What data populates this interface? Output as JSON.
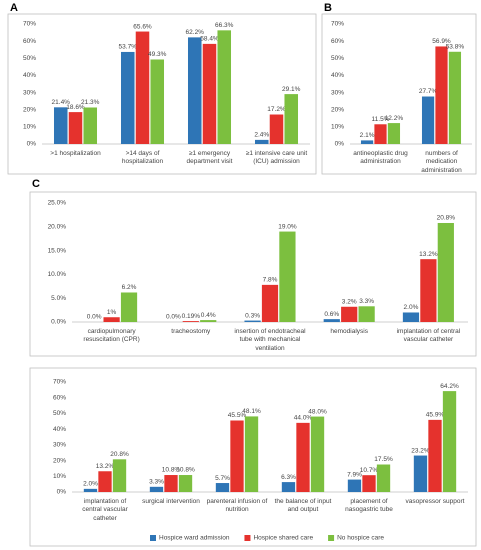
{
  "chart_data": [
    {
      "type": "bar",
      "panel_label": "A",
      "categories": [
        ">1 hospitalization",
        ">14 days of hospitalization",
        "≥1 emergency department visit",
        "≥1 intensive care unit (ICU) admission"
      ],
      "series": [
        {
          "color": "#2e75b6",
          "values": [
            21.4,
            53.7,
            62.2,
            2.4
          ],
          "value_labels": [
            "21.4%",
            "53.7%",
            "62.2%",
            "2.4%"
          ]
        },
        {
          "color": "#e5322d",
          "values": [
            18.6,
            65.6,
            58.4,
            17.2
          ],
          "value_labels": [
            "18.6%",
            "65.6%",
            "58.4%",
            "17.2%"
          ]
        },
        {
          "color": "#7cbf3f",
          "values": [
            21.3,
            49.3,
            66.3,
            29.1
          ],
          "value_labels": [
            "21.3%",
            "49.3%",
            "66.3%",
            "29.1%"
          ]
        }
      ],
      "ylim": [
        0,
        70
      ],
      "yticks": [
        {
          "value": 0,
          "label": "0%"
        },
        {
          "value": 10,
          "label": "10%"
        },
        {
          "value": 20,
          "label": "20%"
        },
        {
          "value": 30,
          "label": "30%"
        },
        {
          "value": 40,
          "label": "40%"
        },
        {
          "value": 50,
          "label": "50%"
        },
        {
          "value": 60,
          "label": "60%"
        },
        {
          "value": 70,
          "label": "70%"
        }
      ]
    },
    {
      "type": "bar",
      "panel_label": "B",
      "categories": [
        "antineoplastic drug administration",
        "numbers of medication administration"
      ],
      "series": [
        {
          "color": "#2e75b6",
          "values": [
            2.1,
            27.7
          ],
          "value_labels": [
            "2.1%",
            "27.7%"
          ]
        },
        {
          "color": "#e5322d",
          "values": [
            11.5,
            56.9
          ],
          "value_labels": [
            "11.5%",
            "56.9%"
          ]
        },
        {
          "color": "#7cbf3f",
          "values": [
            12.2,
            53.8
          ],
          "value_labels": [
            "12.2%",
            "53.8%"
          ]
        }
      ],
      "ylim": [
        0,
        70
      ],
      "yticks": [
        {
          "value": 0,
          "label": "0%"
        },
        {
          "value": 10,
          "label": "10%"
        },
        {
          "value": 20,
          "label": "20%"
        },
        {
          "value": 30,
          "label": "30%"
        },
        {
          "value": 40,
          "label": "40%"
        },
        {
          "value": 50,
          "label": "50%"
        },
        {
          "value": 60,
          "label": "60%"
        },
        {
          "value": 70,
          "label": "70%"
        }
      ]
    },
    {
      "type": "bar",
      "panel_label": "C",
      "categories": [
        "cardiopulmonary resuscitation (CPR)",
        "tracheostomy",
        "insertion of endotracheal tube with mechanical ventilation",
        "hemodialysis",
        "implantation of central vascular catheter"
      ],
      "series": [
        {
          "color": "#2e75b6",
          "values": [
            0,
            0,
            0.3,
            0.6,
            2.0
          ],
          "value_labels": [
            "0.0%",
            "0.0%",
            "0.3%",
            "0.6%",
            "2.0%"
          ]
        },
        {
          "color": "#e5322d",
          "values": [
            1,
            0.19,
            7.8,
            3.2,
            13.2
          ],
          "value_labels": [
            "1%",
            "0.19%",
            "7.8%",
            "3.2%",
            "13.2%"
          ]
        },
        {
          "color": "#7cbf3f",
          "values": [
            6.2,
            0.4,
            19.0,
            3.3,
            20.8
          ],
          "value_labels": [
            "6.2%",
            "0.4%",
            "19.0%",
            "3.3%",
            "20.8%"
          ]
        }
      ],
      "ylim": [
        0,
        25
      ],
      "yticks": [
        {
          "value": 0,
          "label": "0.0%"
        },
        {
          "value": 5,
          "label": "5.0%"
        },
        {
          "value": 10,
          "label": "10.0%"
        },
        {
          "value": 15,
          "label": "15.0%"
        },
        {
          "value": 20,
          "label": "20.0%"
        },
        {
          "value": 25,
          "label": "25.0%"
        }
      ]
    },
    {
      "type": "bar",
      "categories": [
        "implantation of central vascular catheter",
        "surgical intervention",
        "parenteral infusion of nutrition",
        "the balance of input and output",
        "placement of nasogastric tube",
        "vasopressor support"
      ],
      "series": [
        {
          "name": "Hospice ward admission",
          "color": "#2e75b6",
          "values": [
            2.0,
            3.3,
            5.7,
            6.3,
            7.9,
            23.2
          ],
          "value_labels": [
            "2.0%",
            "3.3%",
            "5.7%",
            "6.3%",
            "7.9%",
            "23.2%"
          ]
        },
        {
          "name": "Hospice shared care",
          "color": "#e5322d",
          "values": [
            13.2,
            10.8,
            45.5,
            44.0,
            10.7,
            45.9
          ],
          "value_labels": [
            "13.2%",
            "10.8%",
            "45.5%",
            "44.0%",
            "10.7%",
            "45.9%"
          ]
        },
        {
          "name": "No hospice care",
          "color": "#7cbf3f",
          "values": [
            20.8,
            10.8,
            48.1,
            48.0,
            17.5,
            64.2
          ],
          "value_labels": [
            "20.8%",
            "10.8%",
            "48.1%",
            "48.0%",
            "17.5%",
            "64.2%"
          ]
        }
      ],
      "ylim": [
        0,
        70
      ],
      "yticks": [
        {
          "value": 0,
          "label": "0%"
        },
        {
          "value": 10,
          "label": "10%"
        },
        {
          "value": 20,
          "label": "20%"
        },
        {
          "value": 30,
          "label": "30%"
        },
        {
          "value": 40,
          "label": "40%"
        },
        {
          "value": 50,
          "label": "50%"
        },
        {
          "value": 60,
          "label": "60%"
        },
        {
          "value": 70,
          "label": "70%"
        }
      ],
      "legend": "bottom"
    }
  ]
}
